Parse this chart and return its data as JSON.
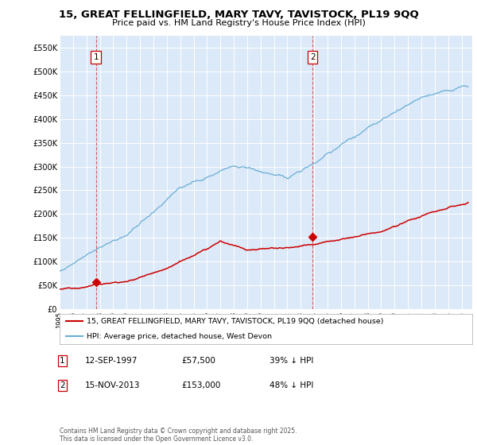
{
  "title": "15, GREAT FELLINGFIELD, MARY TAVY, TAVISTOCK, PL19 9QQ",
  "subtitle": "Price paid vs. HM Land Registry's House Price Index (HPI)",
  "ylim": [
    0,
    575000
  ],
  "yticks": [
    0,
    50000,
    100000,
    150000,
    200000,
    250000,
    300000,
    350000,
    400000,
    450000,
    500000,
    550000
  ],
  "ytick_labels": [
    "£0",
    "£50K",
    "£100K",
    "£150K",
    "£200K",
    "£250K",
    "£300K",
    "£350K",
    "£400K",
    "£450K",
    "£500K",
    "£550K"
  ],
  "background_color": "#dce9f8",
  "line_color_hpi": "#6aaed6",
  "line_color_price": "#cc0000",
  "sale1_date_num": 1997.71,
  "sale1_price": 57500,
  "sale1_label": "1",
  "sale2_date_num": 2013.88,
  "sale2_price": 153000,
  "sale2_label": "2",
  "legend_line1": "15, GREAT FELLINGFIELD, MARY TAVY, TAVISTOCK, PL19 9QQ (detached house)",
  "legend_line2": "HPI: Average price, detached house, West Devon",
  "note1_label": "1",
  "note1_date": "12-SEP-1997",
  "note1_price": "£57,500",
  "note1_pct": "39% ↓ HPI",
  "note2_label": "2",
  "note2_date": "15-NOV-2013",
  "note2_price": "£153,000",
  "note2_pct": "48% ↓ HPI",
  "footer": "Contains HM Land Registry data © Crown copyright and database right 2025.\nThis data is licensed under the Open Government Licence v3.0."
}
